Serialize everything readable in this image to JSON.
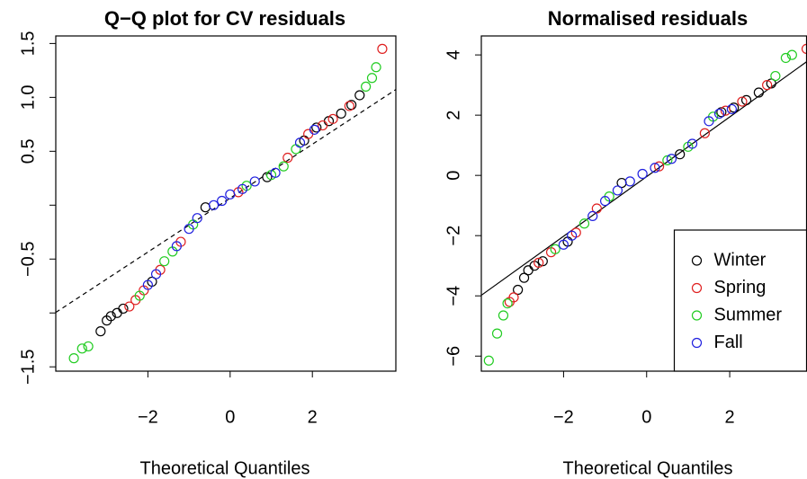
{
  "chart_data": [
    {
      "type": "scatter",
      "title": "Q−Q plot for CV residuals",
      "x_label": "Theoretical Quantiles",
      "xlim": [
        -4.24,
        4.03
      ],
      "ylim": [
        -1.54,
        1.57
      ],
      "xticks": [
        {
          "value": -2,
          "label": "−2"
        },
        0,
        2
      ],
      "yticks": [
        {
          "value": -1.5,
          "label": "−1.5"
        },
        {
          "value": -1.0,
          "label": null
        },
        {
          "value": -0.5,
          "label": "−0.5"
        },
        {
          "value": 0,
          "label": null
        },
        0.5,
        {
          "value": 1.0,
          "label": "1.0"
        },
        1.5
      ],
      "ref_line": {
        "intercept": 0.065,
        "slope": 0.25,
        "dashed": true
      },
      "series": [
        {
          "color": "#000000",
          "x": [
            -3.15,
            -3.0,
            -2.9,
            -2.75,
            -2.6,
            -1.9,
            -0.6,
            0.9,
            1.8,
            2.1,
            2.4,
            2.7,
            2.95,
            3.15
          ],
          "values": [
            -1.17,
            -1.07,
            -1.03,
            -1.0,
            -0.96,
            -0.71,
            -0.02,
            0.26,
            0.6,
            0.72,
            0.78,
            0.85,
            0.93,
            1.02
          ]
        },
        {
          "color": "#df2020",
          "x": [
            -2.45,
            -2.3,
            -2.1,
            -1.7,
            -1.2,
            0.2,
            1.4,
            1.9,
            2.25,
            2.5,
            2.9,
            3.7
          ],
          "values": [
            -0.94,
            -0.88,
            -0.79,
            -0.6,
            -0.34,
            0.12,
            0.44,
            0.66,
            0.74,
            0.8,
            0.92,
            1.45
          ]
        },
        {
          "color": "#22cc22",
          "x": [
            -3.8,
            -3.6,
            -3.45,
            -2.2,
            -1.6,
            -1.4,
            -0.9,
            0.4,
            1.0,
            1.3,
            1.6,
            3.3,
            3.45,
            3.55
          ],
          "values": [
            -1.42,
            -1.33,
            -1.31,
            -0.84,
            -0.52,
            -0.43,
            -0.18,
            0.18,
            0.28,
            0.36,
            0.52,
            1.1,
            1.18,
            1.28
          ]
        },
        {
          "color": "#2020df",
          "x": [
            -2.0,
            -1.8,
            -1.3,
            -1.0,
            -0.8,
            -0.4,
            -0.2,
            0,
            0.3,
            0.6,
            1.1,
            1.7,
            2.05
          ],
          "values": [
            -0.74,
            -0.64,
            -0.38,
            -0.22,
            -0.12,
            0.0,
            0.04,
            0.1,
            0.15,
            0.22,
            0.3,
            0.58,
            0.7
          ]
        }
      ]
    },
    {
      "type": "scatter",
      "title": "Normalised residuals",
      "x_label": "Theoretical Quantiles",
      "xlim": [
        -3.98,
        3.85
      ],
      "ylim": [
        -6.5,
        4.63
      ],
      "xticks": [
        {
          "value": -2,
          "label": "−2"
        },
        0,
        2
      ],
      "yticks": [
        {
          "value": -6,
          "label": "−6"
        },
        {
          "value": -4,
          "label": "−4"
        },
        {
          "value": -2,
          "label": "−2"
        },
        0,
        2,
        4
      ],
      "ref_line": {
        "intercept": -0.04,
        "slope": 0.99,
        "dashed": false
      },
      "legend": "bottomright",
      "series": [
        {
          "name": "Winter",
          "color": "#000000",
          "x": [
            -3.1,
            -2.95,
            -2.85,
            -2.7,
            -2.5,
            -1.9,
            -0.6,
            0.8,
            1.8,
            2.1,
            2.4,
            2.7,
            3.0
          ],
          "values": [
            -3.8,
            -3.4,
            -3.15,
            -3.0,
            -2.85,
            -2.2,
            -0.25,
            0.7,
            2.1,
            2.25,
            2.5,
            2.75,
            3.05
          ]
        },
        {
          "name": "Spring",
          "color": "#df2020",
          "x": [
            -3.3,
            -3.2,
            -2.6,
            -2.3,
            -1.7,
            -1.2,
            0.3,
            1.4,
            1.9,
            2.3,
            2.9,
            3.85
          ],
          "values": [
            -4.2,
            -4.05,
            -2.9,
            -2.55,
            -1.9,
            -1.1,
            0.3,
            1.4,
            2.15,
            2.45,
            3.0,
            4.2
          ]
        },
        {
          "name": "Summer",
          "color": "#22cc22",
          "x": [
            -3.8,
            -3.6,
            -3.45,
            -3.35,
            -2.2,
            -1.5,
            -0.9,
            0.5,
            1.0,
            1.6,
            3.1,
            3.35,
            3.5
          ],
          "values": [
            -6.15,
            -5.25,
            -4.65,
            -4.25,
            -2.45,
            -1.6,
            -0.7,
            0.5,
            0.95,
            1.95,
            3.3,
            3.9,
            4.0
          ]
        },
        {
          "name": "Fall",
          "color": "#2020df",
          "x": [
            -2.0,
            -1.8,
            -1.3,
            -1.0,
            -0.7,
            -0.4,
            -0.1,
            0.2,
            0.6,
            1.1,
            1.5,
            1.75,
            2.05
          ],
          "values": [
            -2.3,
            -2.0,
            -1.35,
            -0.85,
            -0.5,
            -0.2,
            0.05,
            0.25,
            0.55,
            1.05,
            1.8,
            2.05,
            2.2
          ]
        }
      ]
    }
  ]
}
